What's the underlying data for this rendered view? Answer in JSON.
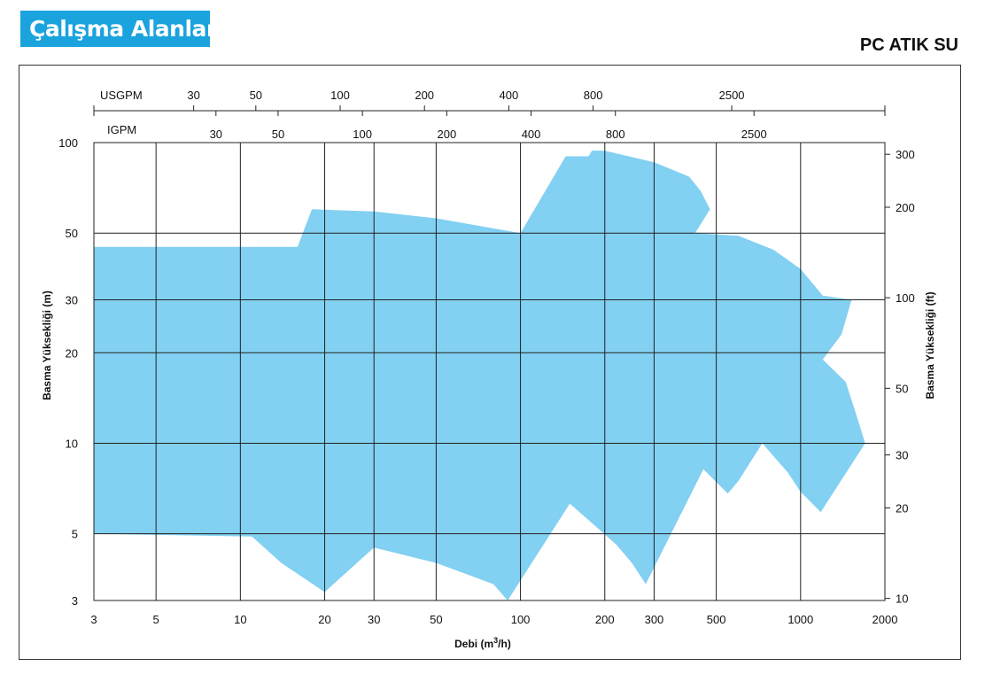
{
  "header": {
    "title": "Çalışma Alanları",
    "product": "PC ATIK SU"
  },
  "colors": {
    "title_bg": "#1aa3dd",
    "area_fill": "#82d0f2",
    "grid": "#222222"
  },
  "chart_data": {
    "type": "area",
    "xscale": "log",
    "yscale": "log",
    "xlim": [
      3,
      2000
    ],
    "ylim": [
      3,
      100
    ],
    "grid": true,
    "xlabel_text": "Debi (m",
    "xlabel_sup": "3",
    "xlabel_tail": "/h)",
    "ylabel": "Basma Yüksekliği (m)",
    "ylabel_right": "Basma Yüksekliği (ft)",
    "x_ticks": [
      3,
      5,
      10,
      20,
      30,
      50,
      100,
      200,
      300,
      500,
      1000,
      2000
    ],
    "y_ticks": [
      3,
      5,
      10,
      20,
      30,
      50,
      100
    ],
    "y_right_ticks": [
      10,
      20,
      30,
      50,
      100,
      200,
      300
    ],
    "usgpm_label": "USGPM",
    "usgpm_ticks": [
      30,
      50,
      100,
      200,
      400,
      800,
      2500
    ],
    "igpm_label": "IGPM",
    "igpm_ticks": [
      30,
      50,
      100,
      200,
      400,
      800,
      2500
    ],
    "envelope": [
      [
        3,
        45
      ],
      [
        16,
        45
      ],
      [
        18,
        60
      ],
      [
        30,
        59
      ],
      [
        50,
        56
      ],
      [
        100,
        50
      ],
      [
        145,
        90
      ],
      [
        175,
        90
      ],
      [
        180,
        94
      ],
      [
        200,
        94
      ],
      [
        300,
        86
      ],
      [
        400,
        77
      ],
      [
        440,
        69
      ],
      [
        475,
        60
      ],
      [
        420,
        50
      ],
      [
        600,
        49
      ],
      [
        800,
        44
      ],
      [
        1000,
        38
      ],
      [
        1200,
        31
      ],
      [
        1520,
        30
      ],
      [
        1400,
        23
      ],
      [
        1200,
        19
      ],
      [
        1450,
        16
      ],
      [
        1600,
        12
      ],
      [
        1700,
        10
      ],
      [
        1180,
        5.9
      ],
      [
        1000,
        6.9
      ],
      [
        900,
        8
      ],
      [
        730,
        10
      ],
      [
        600,
        7.5
      ],
      [
        550,
        6.8
      ],
      [
        450,
        8.2
      ],
      [
        280,
        3.4
      ],
      [
        250,
        4
      ],
      [
        220,
        4.6
      ],
      [
        150,
        6.3
      ],
      [
        90,
        3
      ],
      [
        80,
        3.4
      ],
      [
        50,
        4
      ],
      [
        30,
        4.5
      ],
      [
        20,
        3.2
      ],
      [
        14,
        4
      ],
      [
        11,
        4.9
      ],
      [
        3,
        5
      ]
    ]
  }
}
